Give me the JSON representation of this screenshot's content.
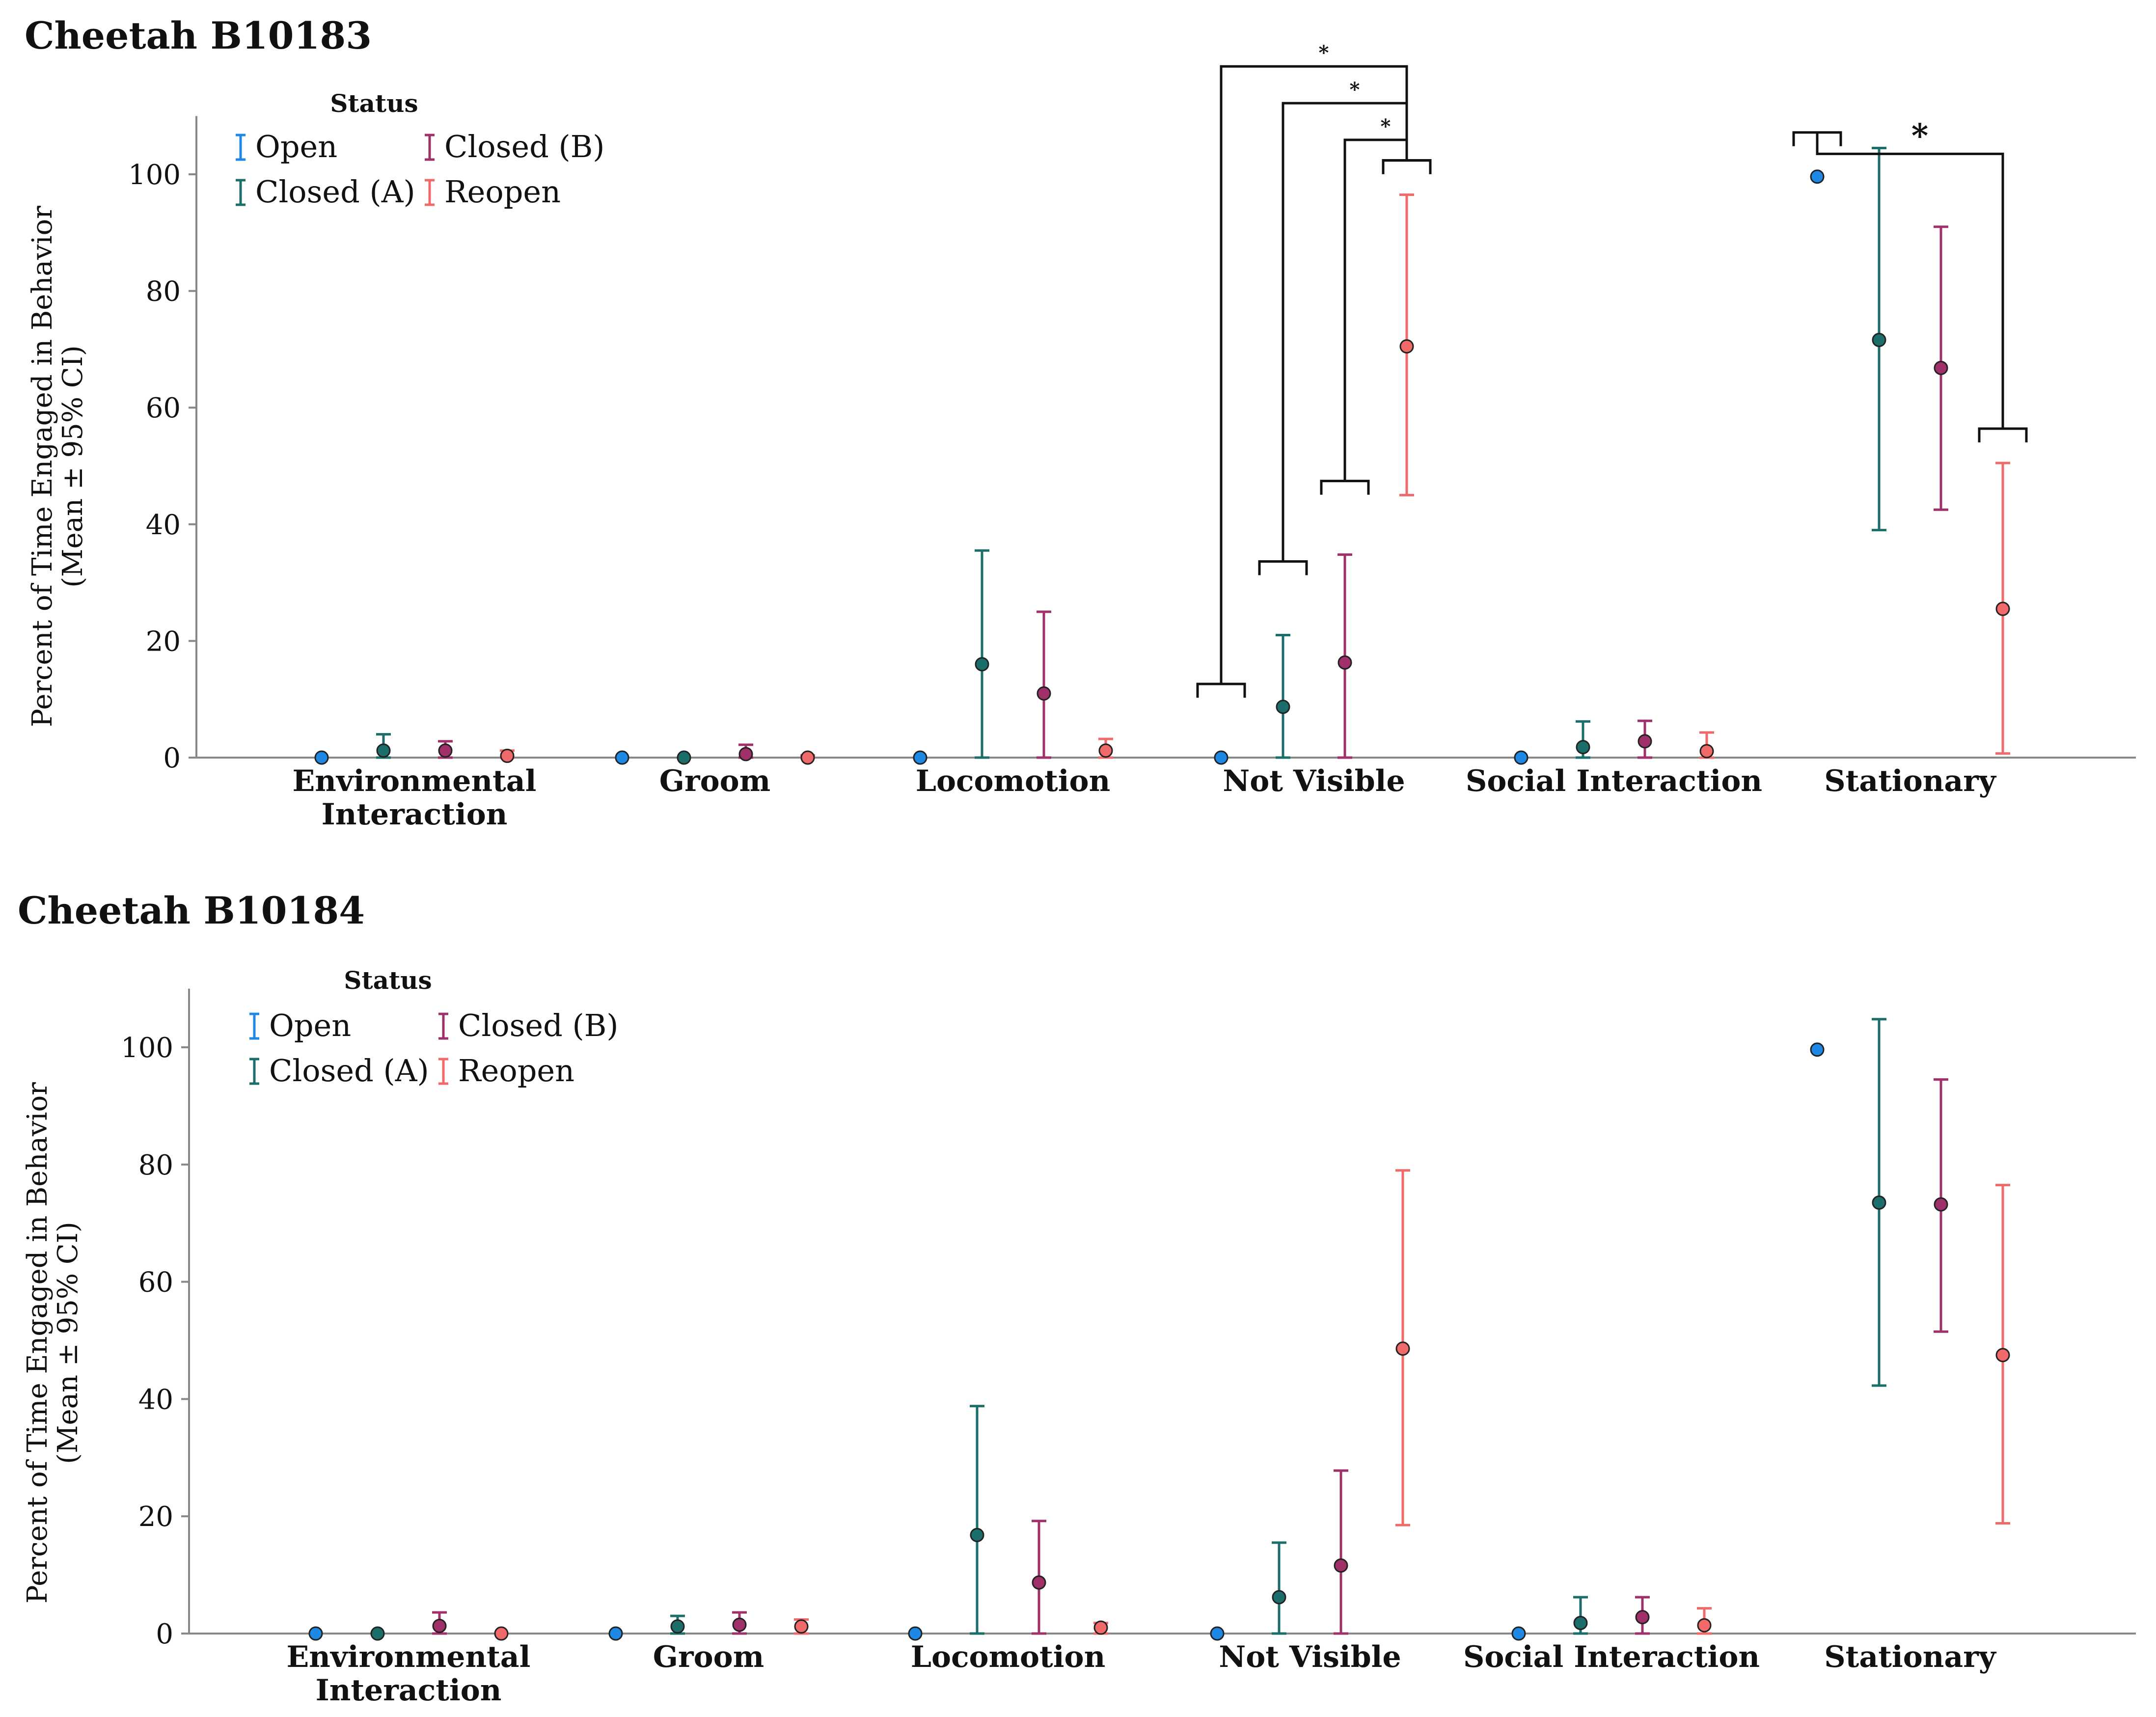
{
  "chart_data": [
    {
      "type": "error-bar",
      "title": "Cheetah B10183",
      "xlabel": "",
      "ylabel": [
        "Percent of Time Engaged in Behavior",
        "(Mean ± 95% CI)"
      ],
      "ylim": [
        0,
        110
      ],
      "yticks": [
        "0",
        "20",
        "40",
        "60",
        "80",
        "100"
      ],
      "grid": false,
      "legend": {
        "title": "Status",
        "position": "top-left"
      },
      "categories": [
        [
          "Environmental",
          "Interaction"
        ],
        [
          "Groom"
        ],
        [
          "Locomotion"
        ],
        [
          "Not Visible"
        ],
        [
          "Social Interaction"
        ],
        [
          "Stationary"
        ]
      ],
      "series": [
        {
          "name": "Open",
          "color": "#1e88e5",
          "mean": [
            0,
            0,
            0,
            0,
            0,
            99.6
          ],
          "lower": [
            0,
            0,
            0,
            0,
            0,
            99.6
          ],
          "upper": [
            0,
            0,
            0,
            0,
            0,
            99.6
          ]
        },
        {
          "name": "Closed (A)",
          "color": "#1b6e6a",
          "mean": [
            1.2,
            0,
            16,
            8.7,
            1.8,
            71.6
          ],
          "lower": [
            0,
            0,
            0,
            0,
            0,
            39
          ],
          "upper": [
            4,
            0,
            35.5,
            21,
            6.2,
            104.5
          ]
        },
        {
          "name": "Closed (B)",
          "color": "#a0306a",
          "mean": [
            1.2,
            0.6,
            11,
            16.3,
            2.8,
            66.8
          ],
          "lower": [
            0,
            0,
            0,
            0,
            0,
            42.5
          ],
          "upper": [
            2.8,
            2.2,
            25,
            34.8,
            6.3,
            91
          ]
        },
        {
          "name": "Reopen",
          "color": "#f06a6a",
          "mean": [
            0.3,
            0,
            1.2,
            70.5,
            1.1,
            25.5
          ],
          "lower": [
            0,
            0,
            0,
            45,
            0,
            0.7
          ],
          "upper": [
            1.2,
            0.4,
            3.2,
            96.5,
            4.3,
            50.5
          ]
        }
      ],
      "significance": [
        {
          "category": "Not Visible",
          "pair": [
            "Open",
            "Reopen"
          ],
          "label": "*"
        },
        {
          "category": "Not Visible",
          "pair": [
            "Closed (A)",
            "Reopen"
          ],
          "label": "*"
        },
        {
          "category": "Not Visible",
          "pair": [
            "Closed (B)",
            "Reopen"
          ],
          "label": "*"
        },
        {
          "category": "Stationary",
          "pair": [
            "Open",
            "Reopen"
          ],
          "label": "*"
        }
      ]
    },
    {
      "type": "error-bar",
      "title": "Cheetah B10184",
      "xlabel": "",
      "ylabel": [
        "Percent of Time Engaged in Behavior",
        "(Mean ± 95% CI)"
      ],
      "ylim": [
        0,
        110
      ],
      "yticks": [
        "0",
        "20",
        "40",
        "60",
        "80",
        "100"
      ],
      "grid": false,
      "legend": {
        "title": "Status",
        "position": "top-left"
      },
      "categories": [
        [
          "Environmental",
          "Interaction"
        ],
        [
          "Groom"
        ],
        [
          "Locomotion"
        ],
        [
          "Not Visible"
        ],
        [
          "Social Interaction"
        ],
        [
          "Stationary"
        ]
      ],
      "series": [
        {
          "name": "Open",
          "color": "#1e88e5",
          "mean": [
            0,
            0,
            0,
            0,
            0,
            99.6
          ],
          "lower": [
            0,
            0,
            0,
            0,
            0,
            99.6
          ],
          "upper": [
            0,
            0,
            0,
            0,
            0,
            99.6
          ]
        },
        {
          "name": "Closed (A)",
          "color": "#1b6e6a",
          "mean": [
            0,
            1.2,
            16.8,
            6.2,
            1.8,
            73.5
          ],
          "lower": [
            0,
            0,
            0,
            0,
            0,
            42.3
          ],
          "upper": [
            0,
            3,
            38.8,
            15.5,
            6.2,
            104.8
          ]
        },
        {
          "name": "Closed (B)",
          "color": "#a0306a",
          "mean": [
            1.3,
            1.5,
            8.7,
            11.6,
            2.8,
            73.2
          ],
          "lower": [
            0,
            0,
            0,
            0,
            0,
            51.5
          ],
          "upper": [
            3.6,
            3.6,
            19.2,
            27.8,
            6.2,
            94.5
          ]
        },
        {
          "name": "Reopen",
          "color": "#f06a6a",
          "mean": [
            0,
            1.2,
            1,
            48.6,
            1.4,
            47.5
          ],
          "lower": [
            0,
            0,
            0,
            18.5,
            0,
            18.8
          ],
          "upper": [
            0,
            2.4,
            1.8,
            79,
            4.3,
            76.5
          ]
        }
      ],
      "significance": []
    }
  ]
}
